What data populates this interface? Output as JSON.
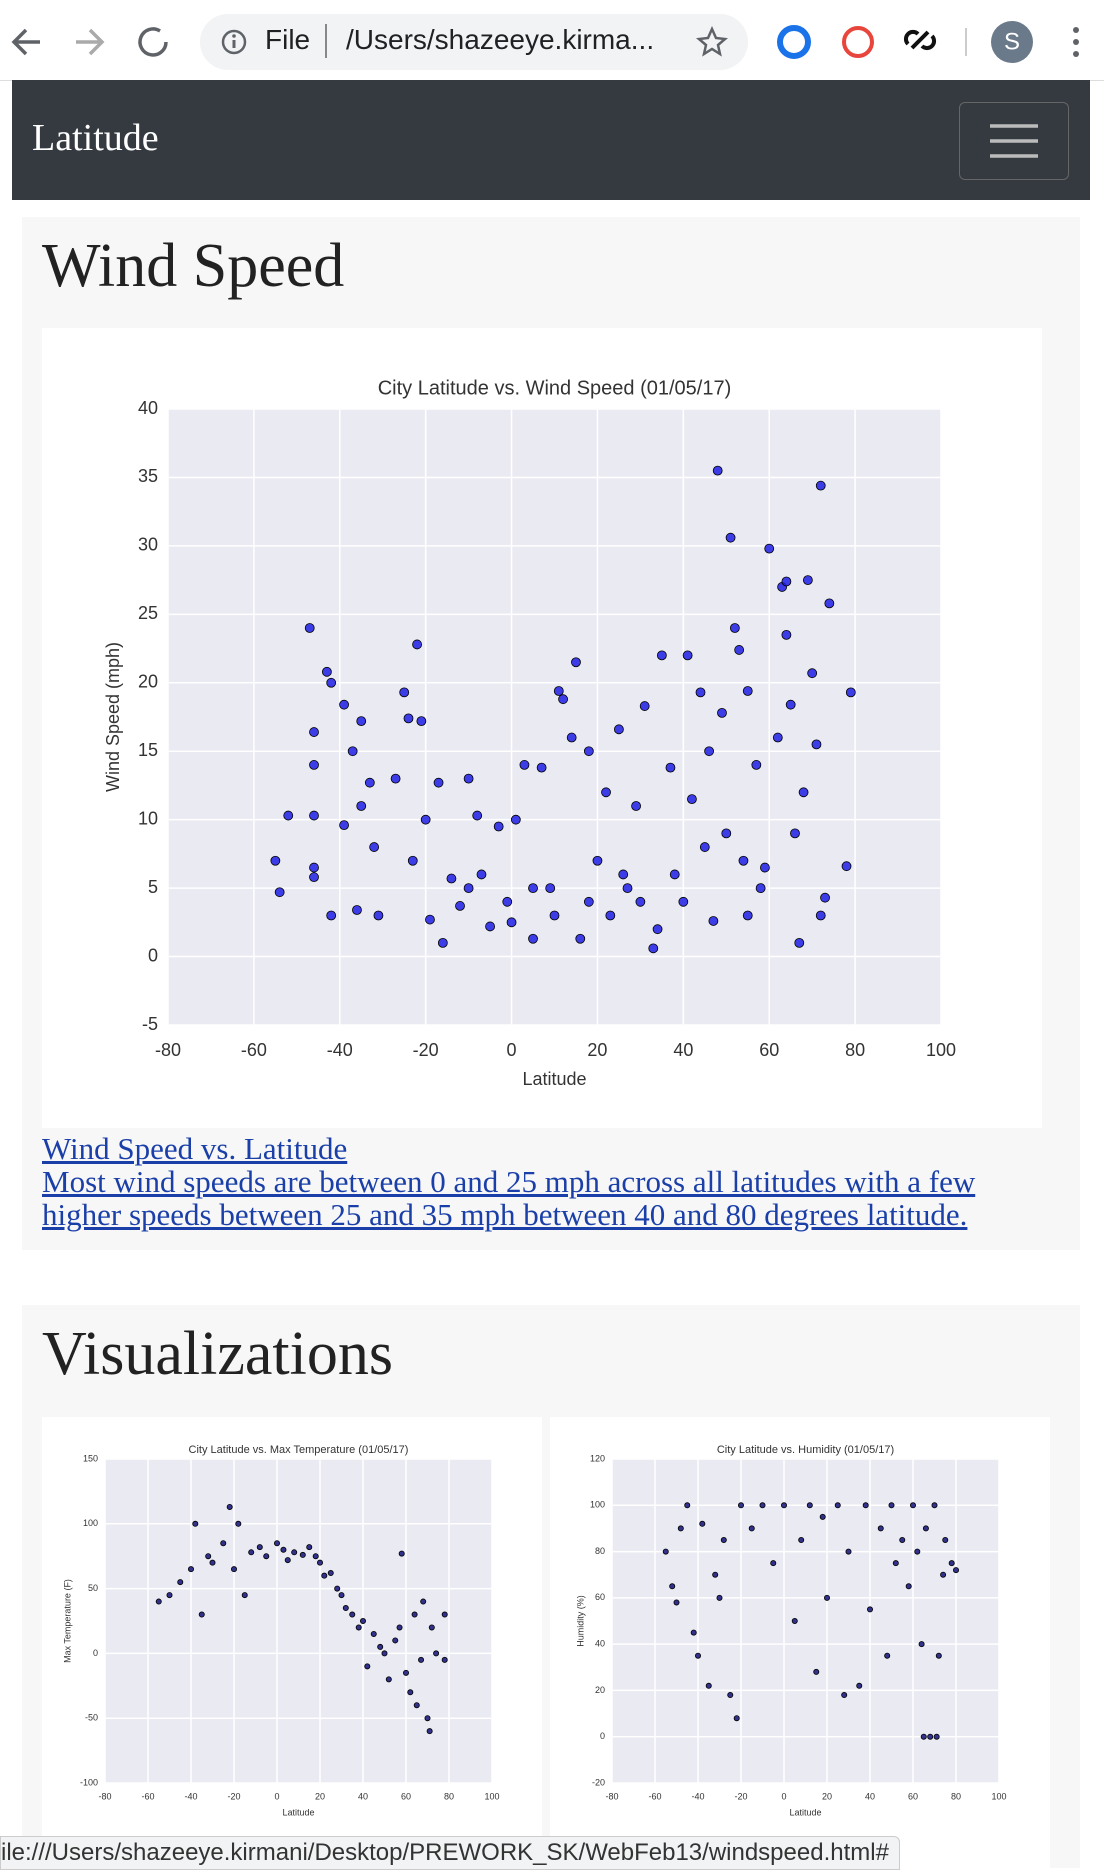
{
  "browser": {
    "scheme": "File",
    "address": "/Users/shazeeye.kirma...",
    "profile": "S",
    "status": "ile:///Users/shazeeye.kirmani/Desktop/PREWORK_SK/WebFeb13/windspeed.html#"
  },
  "navbar": {
    "brand": "Latitude"
  },
  "sections": [
    {
      "heading": "Wind Speed",
      "link_title": "Wind Speed vs. Latitude",
      "link_text": "Most wind speeds are between 0 and 25 mph across all latitudes with a few higher speeds between 25 and 35 mph between 40 and 80 degrees latitude."
    },
    {
      "heading": "Visualizations"
    }
  ],
  "chart_data": [
    {
      "type": "scatter",
      "title": "City Latitude vs. Wind Speed (01/05/17)",
      "xlabel": "Latitude",
      "ylabel": "Wind Speed (mph)",
      "xlim": [
        -80,
        100
      ],
      "ylim": [
        -5,
        40
      ],
      "xticks": [
        -80,
        -60,
        -40,
        -20,
        0,
        20,
        40,
        60,
        80,
        100
      ],
      "yticks": [
        -5,
        0,
        5,
        10,
        15,
        20,
        25,
        30,
        35,
        40
      ],
      "grid": true,
      "color": "#1e1ee6",
      "x": [
        -55,
        -54,
        -52,
        -47,
        -46,
        -46,
        -46,
        -46,
        -46,
        -43,
        -42,
        -42,
        -39,
        -39,
        -37,
        -36,
        -35,
        -35,
        -33,
        -32,
        -31,
        -27,
        -25,
        -24,
        -23,
        -22,
        -21,
        -20,
        -19,
        -17,
        -16,
        -14,
        -12,
        -10,
        -8,
        -7,
        -5,
        -3,
        -1,
        1,
        3,
        5,
        7,
        9,
        11,
        12,
        14,
        15,
        16,
        18,
        20,
        22,
        23,
        25,
        27,
        29,
        31,
        33,
        35,
        37,
        40,
        41,
        42,
        44,
        46,
        47,
        48,
        49,
        51,
        52,
        53,
        54,
        55,
        57,
        59,
        60,
        62,
        63,
        64,
        64,
        65,
        66,
        67,
        68,
        69,
        70,
        71,
        72,
        72,
        73,
        74,
        78,
        79,
        5,
        10,
        30,
        38,
        45,
        55,
        0,
        -10,
        18,
        26,
        34,
        50,
        58
      ],
      "values": [
        7,
        4.7,
        10.3,
        24,
        16.4,
        14,
        10.3,
        6.5,
        5.8,
        20.8,
        20,
        3,
        18.4,
        9.6,
        15,
        3.4,
        17.2,
        11,
        12.7,
        8,
        3,
        13,
        19.3,
        17.4,
        7,
        22.8,
        17.2,
        10,
        2.7,
        12.7,
        1,
        5.7,
        3.7,
        13,
        10.3,
        6,
        2.2,
        9.5,
        4,
        10,
        14,
        1.3,
        13.8,
        5,
        19.4,
        18.8,
        16,
        21.5,
        1.3,
        15,
        7,
        12,
        3,
        16.6,
        5,
        11,
        18.3,
        0.6,
        22,
        13.8,
        4,
        22,
        11.5,
        19.3,
        15,
        2.6,
        35.5,
        17.8,
        30.6,
        24,
        22.4,
        7,
        19.4,
        14,
        6.5,
        29.8,
        16,
        27,
        27.4,
        23.5,
        18.4,
        9,
        1,
        12,
        27.5,
        20.7,
        15.5,
        34.4,
        3,
        4.3,
        25.8,
        6.6,
        19.3,
        5,
        3,
        4,
        6,
        8,
        3,
        2.5,
        5,
        4,
        6,
        2,
        9,
        5
      ]
    },
    {
      "type": "scatter",
      "title": "City Latitude vs. Max Temperature (01/05/17)",
      "xlabel": "Latitude",
      "ylabel": "Max Temperature (F)",
      "xlim": [
        -80,
        100
      ],
      "ylim": [
        -100,
        150
      ],
      "xticks": [
        -80,
        -60,
        -40,
        -20,
        0,
        20,
        40,
        60,
        80,
        100
      ],
      "yticks": [
        -100,
        -50,
        0,
        50,
        100,
        150
      ],
      "grid": true,
      "color": "#10107a",
      "x": [
        -55,
        -50,
        -45,
        -40,
        -38,
        -35,
        -32,
        -30,
        -25,
        -22,
        -20,
        -18,
        -15,
        -12,
        -8,
        -5,
        0,
        3,
        5,
        8,
        12,
        15,
        18,
        20,
        22,
        25,
        28,
        30,
        32,
        35,
        38,
        40,
        42,
        45,
        48,
        50,
        52,
        55,
        57,
        58,
        60,
        62,
        64,
        65,
        67,
        68,
        70,
        71,
        72,
        74,
        78,
        78
      ],
      "values": [
        40,
        45,
        55,
        65,
        100,
        30,
        75,
        70,
        85,
        113,
        65,
        100,
        45,
        78,
        82,
        75,
        85,
        80,
        72,
        78,
        76,
        82,
        75,
        70,
        60,
        62,
        50,
        45,
        35,
        30,
        20,
        25,
        -10,
        15,
        5,
        0,
        -20,
        10,
        20,
        77,
        -15,
        -30,
        30,
        -40,
        -5,
        40,
        -50,
        -60,
        20,
        0,
        30,
        -5
      ]
    },
    {
      "type": "scatter",
      "title": "City Latitude vs. Humidity (01/05/17)",
      "xlabel": "Latitude",
      "ylabel": "Humidity (%)",
      "xlim": [
        -80,
        100
      ],
      "ylim": [
        -20,
        120
      ],
      "xticks": [
        -80,
        -60,
        -40,
        -20,
        0,
        20,
        40,
        60,
        80,
        100
      ],
      "yticks": [
        -20,
        0,
        20,
        40,
        60,
        80,
        100,
        120
      ],
      "grid": true,
      "color": "#10107a",
      "x": [
        -55,
        -52,
        -50,
        -48,
        -45,
        -42,
        -40,
        -38,
        -35,
        -32,
        -30,
        -28,
        -25,
        -22,
        -20,
        -15,
        -10,
        -5,
        0,
        5,
        8,
        12,
        15,
        18,
        20,
        25,
        28,
        30,
        35,
        38,
        40,
        45,
        48,
        50,
        52,
        55,
        58,
        60,
        62,
        64,
        65,
        66,
        68,
        70,
        71,
        72,
        74,
        75,
        78,
        80
      ],
      "values": [
        80,
        65,
        58,
        90,
        100,
        45,
        35,
        92,
        22,
        70,
        60,
        85,
        18,
        8,
        100,
        90,
        100,
        75,
        100,
        50,
        85,
        100,
        28,
        95,
        60,
        100,
        18,
        80,
        22,
        100,
        55,
        90,
        35,
        100,
        75,
        85,
        65,
        100,
        80,
        40,
        0,
        90,
        0,
        100,
        0,
        35,
        70,
        85,
        75,
        72
      ]
    }
  ]
}
